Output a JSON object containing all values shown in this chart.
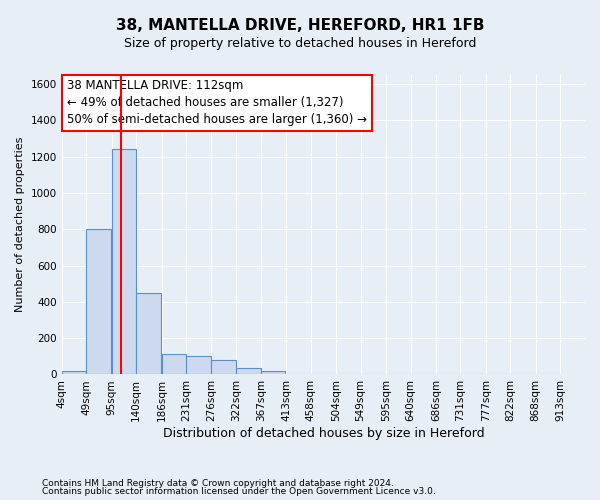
{
  "title": "38, MANTELLA DRIVE, HEREFORD, HR1 1FB",
  "subtitle": "Size of property relative to detached houses in Hereford",
  "xlabel": "Distribution of detached houses by size in Hereford",
  "ylabel": "Number of detached properties",
  "footer1": "Contains HM Land Registry data © Crown copyright and database right 2024.",
  "footer2": "Contains public sector information licensed under the Open Government Licence v3.0.",
  "annotation_line1": "38 MANTELLA DRIVE: 112sqm",
  "annotation_line2": "← 49% of detached houses are smaller (1,327)",
  "annotation_line3": "50% of semi-detached houses are larger (1,360) →",
  "bar_left_edges": [
    4,
    49,
    95,
    140,
    186,
    231,
    276,
    322,
    367,
    413,
    458,
    504,
    549,
    595,
    640,
    686,
    731,
    777,
    822,
    868
  ],
  "bar_heights": [
    20,
    800,
    1240,
    450,
    110,
    100,
    80,
    38,
    18,
    5,
    0,
    0,
    0,
    0,
    0,
    0,
    0,
    0,
    0,
    0
  ],
  "bin_width": 45,
  "bar_color": "#ccd9ee",
  "bar_edge_color": "#5b8fc9",
  "red_line_x": 112,
  "ylim": [
    0,
    1650
  ],
  "yticks": [
    0,
    200,
    400,
    600,
    800,
    1000,
    1200,
    1400,
    1600
  ],
  "xtick_labels": [
    "4sqm",
    "49sqm",
    "95sqm",
    "140sqm",
    "186sqm",
    "231sqm",
    "276sqm",
    "322sqm",
    "367sqm",
    "413sqm",
    "458sqm",
    "504sqm",
    "549sqm",
    "595sqm",
    "640sqm",
    "686sqm",
    "731sqm",
    "777sqm",
    "822sqm",
    "868sqm",
    "913sqm"
  ],
  "bg_color": "#e8eef5",
  "plot_bg_color": "#e8eef5",
  "grid_color": "#ffffff",
  "title_fontsize": 11,
  "subtitle_fontsize": 9,
  "annotation_fontsize": 8.5,
  "tick_fontsize": 7.5,
  "ylabel_fontsize": 8,
  "xlabel_fontsize": 9
}
